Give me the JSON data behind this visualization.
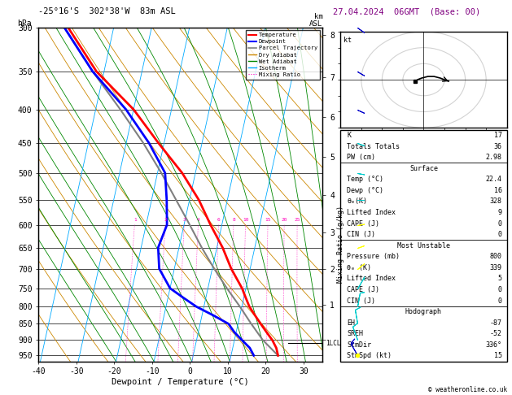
{
  "title_left": "-25°16'S  302°38'W  83m ASL",
  "title_right": "27.04.2024  06GMT  (Base: 00)",
  "xlabel": "Dewpoint / Temperature (°C)",
  "pressure_ticks": [
    300,
    350,
    400,
    450,
    500,
    550,
    600,
    650,
    700,
    750,
    800,
    850,
    900,
    950
  ],
  "temp_min": -40,
  "temp_max": 35,
  "skew": 38,
  "temperature_data": {
    "pressure": [
      950,
      925,
      900,
      875,
      850,
      825,
      800,
      775,
      750,
      700,
      650,
      600,
      550,
      500,
      450,
      400,
      350,
      300
    ],
    "temp": [
      22.4,
      21.5,
      20.0,
      18.0,
      16.0,
      14.0,
      12.0,
      10.5,
      9.0,
      5.0,
      1.5,
      -3.0,
      -7.5,
      -13.5,
      -21.5,
      -30.0,
      -42.0,
      -52.0
    ]
  },
  "dewpoint_data": {
    "pressure": [
      950,
      925,
      900,
      875,
      850,
      825,
      800,
      775,
      750,
      700,
      650,
      600,
      550,
      500,
      450,
      400,
      350,
      300
    ],
    "dewp": [
      16.0,
      14.5,
      12.0,
      9.5,
      7.5,
      3.0,
      -2.0,
      -6.0,
      -10.0,
      -14.0,
      -15.5,
      -14.5,
      -16.0,
      -18.0,
      -24.0,
      -32.0,
      -43.0,
      -53.0
    ]
  },
  "parcel_data": {
    "pressure": [
      950,
      900,
      850,
      800,
      750,
      700,
      650,
      600,
      550,
      500,
      450,
      400,
      350,
      300
    ],
    "temp": [
      22.4,
      17.5,
      13.5,
      9.5,
      5.0,
      0.5,
      -4.0,
      -8.5,
      -13.5,
      -19.0,
      -25.5,
      -33.5,
      -43.0,
      -53.0
    ]
  },
  "km_ticks": {
    "pressures": [
      308,
      357,
      411,
      472,
      541,
      617,
      701,
      795,
      899
    ],
    "labels": [
      "8",
      "7",
      "6",
      "5",
      "4",
      "3",
      "2",
      "1",
      ""
    ]
  },
  "lcl_pressure": 910,
  "mixing_ratio_lines": [
    1,
    2,
    3,
    4,
    6,
    8,
    10,
    15,
    20,
    25
  ],
  "info_box": {
    "K": 17,
    "Totals_Totals": 36,
    "PW_cm": 2.98,
    "Surface_Temp": 22.4,
    "Surface_Dewp": 16,
    "Surface_theta_e": 328,
    "Surface_LI": 9,
    "Surface_CAPE": 0,
    "Surface_CIN": 0,
    "MU_Pressure": 800,
    "MU_theta_e": 339,
    "MU_LI": 5,
    "MU_CAPE": 0,
    "MU_CIN": 0,
    "EH": -87,
    "SREH": -52,
    "StmDir": 336,
    "StmSpd": 15
  },
  "hodograph": {
    "u": [
      -4,
      -3,
      -1,
      2,
      5,
      8,
      10,
      12
    ],
    "v": [
      -1,
      0,
      1,
      2,
      2,
      1,
      0,
      -1
    ]
  },
  "wind_barbs": {
    "pressures": [
      950,
      900,
      850,
      800,
      750,
      700,
      650,
      600,
      550,
      500,
      450,
      400,
      350,
      300
    ],
    "speeds": [
      15,
      12,
      10,
      8,
      6,
      5,
      5,
      5,
      8,
      10,
      12,
      15,
      18,
      20
    ],
    "dirs": [
      150,
      160,
      170,
      190,
      210,
      230,
      250,
      260,
      270,
      280,
      290,
      295,
      300,
      305
    ]
  },
  "colors": {
    "temperature": "#ff0000",
    "dewpoint": "#0000ff",
    "parcel": "#808080",
    "dry_adiabat": "#cc8800",
    "wet_adiabat": "#008800",
    "isotherm": "#00aaff",
    "mixing_ratio": "#ff00bb",
    "background": "#ffffff"
  }
}
